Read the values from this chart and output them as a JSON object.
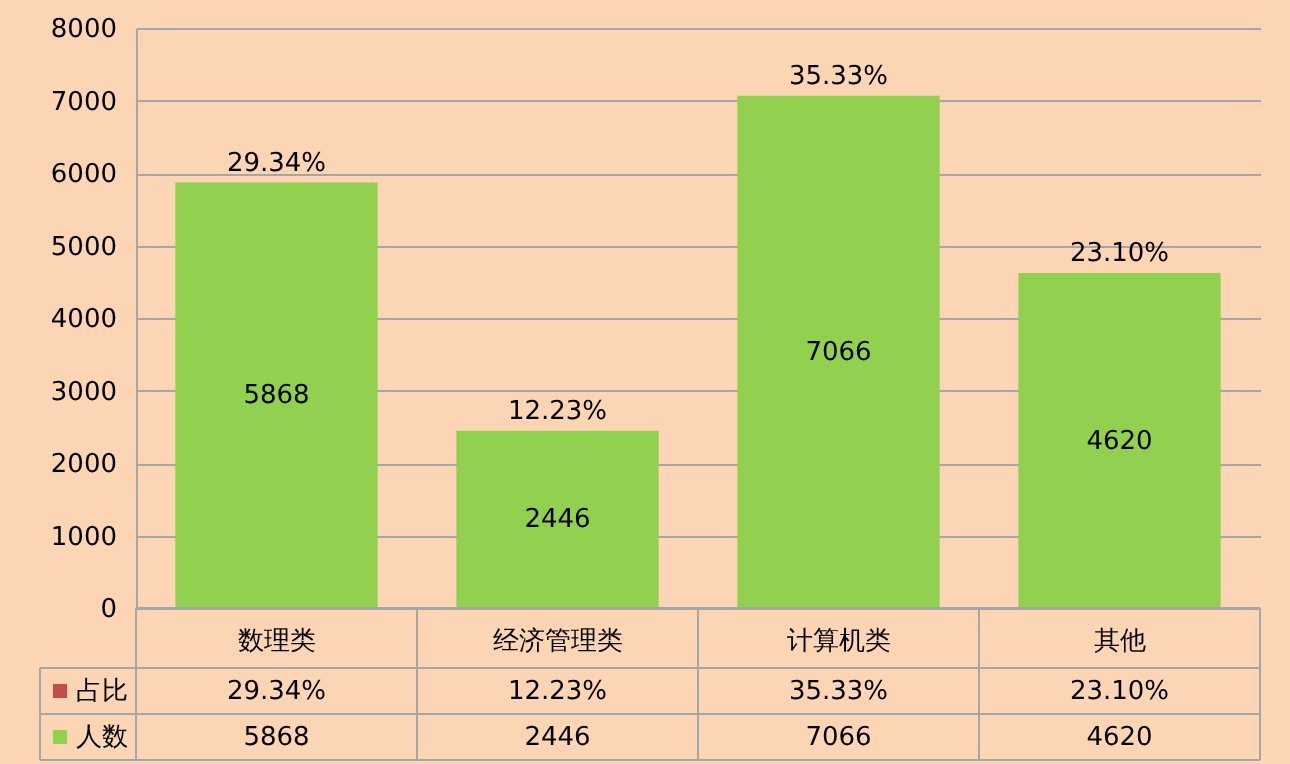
{
  "chart_data": {
    "type": "bar",
    "stacked": true,
    "categories": [
      "数理类",
      "经济管理类",
      "计算机类",
      "其他"
    ],
    "series": [
      {
        "name": "人数",
        "color": "#92d050",
        "values": [
          5868,
          2446,
          7066,
          4620
        ],
        "value_labels": [
          "5868",
          "2446",
          "7066",
          "4620"
        ]
      },
      {
        "name": "占比",
        "color": "#c0504d",
        "values": [
          0.2934,
          0.1223,
          0.3533,
          0.231
        ],
        "value_labels": [
          "29.34%",
          "12.23%",
          "35.33%",
          "23.10%"
        ]
      }
    ],
    "ylim": [
      0,
      8000
    ],
    "yticks": [
      0,
      1000,
      2000,
      3000,
      4000,
      5000,
      6000,
      7000,
      8000
    ],
    "grid": "y",
    "legend": "bottom"
  }
}
